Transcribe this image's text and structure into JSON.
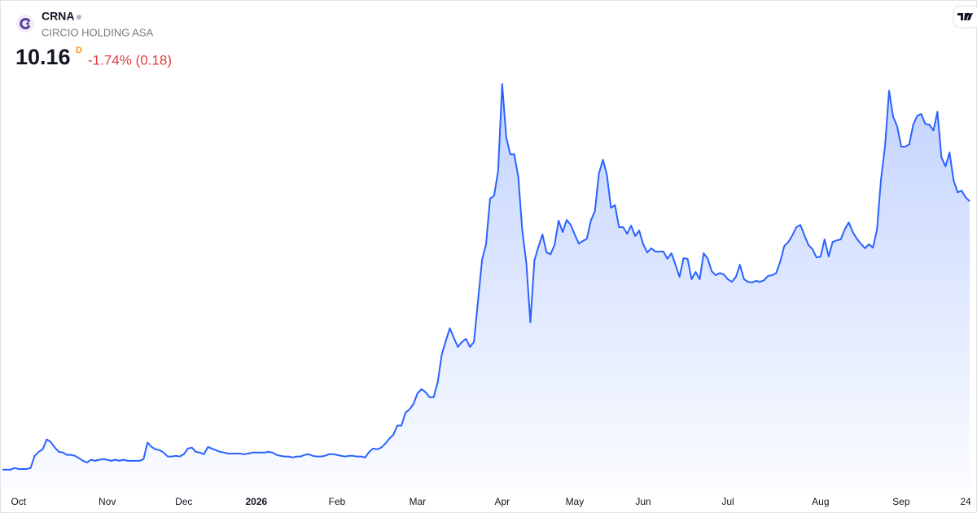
{
  "header": {
    "symbol": "CRNA",
    "name": "CIRCIO HOLDING ASA",
    "price": "10.16",
    "interval": "D",
    "change": "-1.74% (0.18)"
  },
  "chart_data": {
    "type": "area",
    "color": "#2962ff",
    "values": [
      2.0,
      2.0,
      2.0,
      2.05,
      2.02,
      2.02,
      2.02,
      2.05,
      2.42,
      2.54,
      2.62,
      2.92,
      2.84,
      2.67,
      2.54,
      2.52,
      2.45,
      2.45,
      2.42,
      2.35,
      2.27,
      2.22,
      2.3,
      2.27,
      2.3,
      2.32,
      2.3,
      2.27,
      2.3,
      2.27,
      2.3,
      2.27,
      2.27,
      2.27,
      2.27,
      2.32,
      2.82,
      2.69,
      2.62,
      2.59,
      2.52,
      2.4,
      2.4,
      2.42,
      2.4,
      2.47,
      2.64,
      2.67,
      2.54,
      2.52,
      2.47,
      2.69,
      2.64,
      2.59,
      2.54,
      2.52,
      2.49,
      2.49,
      2.49,
      2.49,
      2.47,
      2.49,
      2.52,
      2.52,
      2.52,
      2.52,
      2.54,
      2.52,
      2.45,
      2.42,
      2.4,
      2.4,
      2.37,
      2.4,
      2.4,
      2.45,
      2.47,
      2.42,
      2.4,
      2.4,
      2.42,
      2.47,
      2.47,
      2.45,
      2.42,
      2.4,
      2.42,
      2.42,
      2.4,
      2.4,
      2.37,
      2.54,
      2.64,
      2.62,
      2.67,
      2.79,
      2.94,
      3.06,
      3.34,
      3.34,
      3.73,
      3.83,
      4.0,
      4.32,
      4.45,
      4.35,
      4.2,
      4.2,
      4.65,
      5.49,
      5.91,
      6.3,
      6.01,
      5.73,
      5.88,
      5.98,
      5.73,
      5.88,
      7.12,
      8.38,
      8.85,
      10.24,
      10.33,
      11.08,
      13.72,
      12.11,
      11.59,
      11.59,
      10.9,
      9.27,
      8.28,
      6.48,
      8.36,
      8.78,
      9.15,
      8.6,
      8.55,
      8.83,
      9.57,
      9.22,
      9.59,
      9.44,
      9.15,
      8.87,
      8.95,
      9.02,
      9.57,
      9.86,
      11.0,
      11.42,
      10.95,
      9.96,
      10.04,
      9.37,
      9.37,
      9.17,
      9.42,
      9.1,
      9.27,
      8.85,
      8.6,
      8.73,
      8.63,
      8.63,
      8.63,
      8.41,
      8.58,
      8.23,
      7.86,
      8.43,
      8.41,
      7.79,
      8.01,
      7.79,
      8.58,
      8.41,
      8.03,
      7.91,
      7.98,
      7.93,
      7.79,
      7.71,
      7.86,
      8.23,
      7.79,
      7.71,
      7.69,
      7.74,
      7.71,
      7.76,
      7.89,
      7.91,
      7.98,
      8.33,
      8.8,
      8.92,
      9.12,
      9.37,
      9.44,
      9.12,
      8.83,
      8.7,
      8.45,
      8.48,
      9.0,
      8.48,
      8.92,
      8.97,
      9.0,
      9.3,
      9.52,
      9.22,
      9.02,
      8.87,
      8.73,
      8.85,
      8.75,
      9.3,
      10.83,
      11.82,
      13.52,
      12.73,
      12.44,
      11.82,
      11.82,
      11.89,
      12.49,
      12.76,
      12.81,
      12.51,
      12.49,
      12.31,
      12.88,
      11.5,
      11.22,
      11.64,
      10.8,
      10.43,
      10.48,
      10.28,
      10.16
    ],
    "xlim": [
      0,
      240
    ],
    "xticks": [
      {
        "value": 4,
        "label": "Oct"
      },
      {
        "value": 26,
        "label": "Nov"
      },
      {
        "value": 45,
        "label": "Dec"
      },
      {
        "value": 63,
        "label": "2026"
      },
      {
        "value": 83,
        "label": "Feb"
      },
      {
        "value": 103,
        "label": "Mar"
      },
      {
        "value": 124,
        "label": "Apr"
      },
      {
        "value": 142,
        "label": "May"
      },
      {
        "value": 159,
        "label": "Jun"
      },
      {
        "value": 180,
        "label": "Jul"
      },
      {
        "value": 203,
        "label": "Aug"
      },
      {
        "value": 223,
        "label": "Sep"
      },
      {
        "value": 239,
        "label": "24"
      }
    ],
    "ylim": [
      1.4,
      14.0
    ]
  }
}
